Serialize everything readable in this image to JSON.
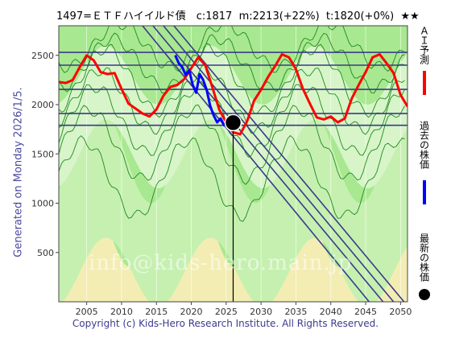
{
  "header": {
    "title": "1497=ＥＴＦハイイルド債　c:1817  m:2213(+22%)  t:1820(+0%)  ★★"
  },
  "side": {
    "generated": "Generated on Monday 2026/1/5."
  },
  "legend": {
    "ai_forecast": "ＡＩ予測",
    "past_price": "過去の株価",
    "latest_price": "最新の株価",
    "ai_color": "#ff0000",
    "past_color": "#0000ff",
    "latest_color": "#000000"
  },
  "watermark": "info@kids-hero.main.jp",
  "footer": {
    "copyright": "Copyright (c) Kids-Hero Research Institute. All Rights Reserved."
  },
  "chart_data": {
    "type": "line",
    "xlim": [
      2001,
      2051
    ],
    "ylim": [
      0,
      2800
    ],
    "x_ticks": [
      2005,
      2010,
      2015,
      2020,
      2025,
      2030,
      2035,
      2040,
      2045,
      2050
    ],
    "y_ticks": [
      500,
      1000,
      1500,
      2000,
      2500
    ],
    "hlines": [
      2530,
      2400,
      2155,
      1910,
      1790
    ],
    "trend_lines": [
      {
        "x": [
          2013.0,
          2045.5
        ],
        "y": [
          2800,
          0
        ]
      },
      {
        "x": [
          2014.5,
          2047.5
        ],
        "y": [
          2800,
          0
        ]
      },
      {
        "x": [
          2016.0,
          2049.0
        ],
        "y": [
          2800,
          0
        ]
      },
      {
        "x": [
          2017.5,
          2050.5
        ],
        "y": [
          2800,
          0
        ]
      }
    ],
    "latest": {
      "x": 2026.0,
      "y": 1817
    },
    "series": [
      {
        "name": "ＡＩ予測",
        "color": "#ff0000",
        "x": [
          2001,
          2002,
          2003,
          2004,
          2005,
          2006,
          2007,
          2008,
          2009,
          2010,
          2011,
          2012,
          2013,
          2014,
          2015,
          2016,
          2017,
          2018,
          2019,
          2020,
          2021,
          2022,
          2023,
          2024,
          2025,
          2026,
          2027,
          2028,
          2029,
          2030,
          2031,
          2032,
          2033,
          2034,
          2035,
          2036,
          2037,
          2038,
          2039,
          2040,
          2041,
          2042,
          2043,
          2044,
          2045,
          2046,
          2047,
          2048,
          2049,
          2050,
          2051
        ],
        "y": [
          2230,
          2220,
          2250,
          2380,
          2500,
          2450,
          2330,
          2310,
          2320,
          2160,
          2010,
          1960,
          1910,
          1880,
          1950,
          2090,
          2180,
          2200,
          2260,
          2370,
          2480,
          2400,
          2180,
          1950,
          1820,
          1720,
          1700,
          1830,
          2040,
          2150,
          2280,
          2390,
          2510,
          2480,
          2360,
          2160,
          2010,
          1870,
          1850,
          1880,
          1820,
          1860,
          2060,
          2200,
          2330,
          2480,
          2510,
          2420,
          2320,
          2100,
          1980
        ]
      },
      {
        "name": "過去の株価",
        "color": "#0000ff",
        "x": [
          2017.7,
          2018.2,
          2018.7,
          2019.2,
          2019.7,
          2020.2,
          2020.7,
          2021.2,
          2021.7,
          2022.2,
          2022.7,
          2023.2,
          2023.7,
          2024.2,
          2024.7,
          2025.2,
          2025.7,
          2026.0
        ],
        "y": [
          2500,
          2420,
          2380,
          2300,
          2350,
          2200,
          2120,
          2310,
          2250,
          2150,
          1990,
          1890,
          1820,
          1860,
          1790,
          1840,
          1800,
          1817
        ]
      }
    ]
  }
}
